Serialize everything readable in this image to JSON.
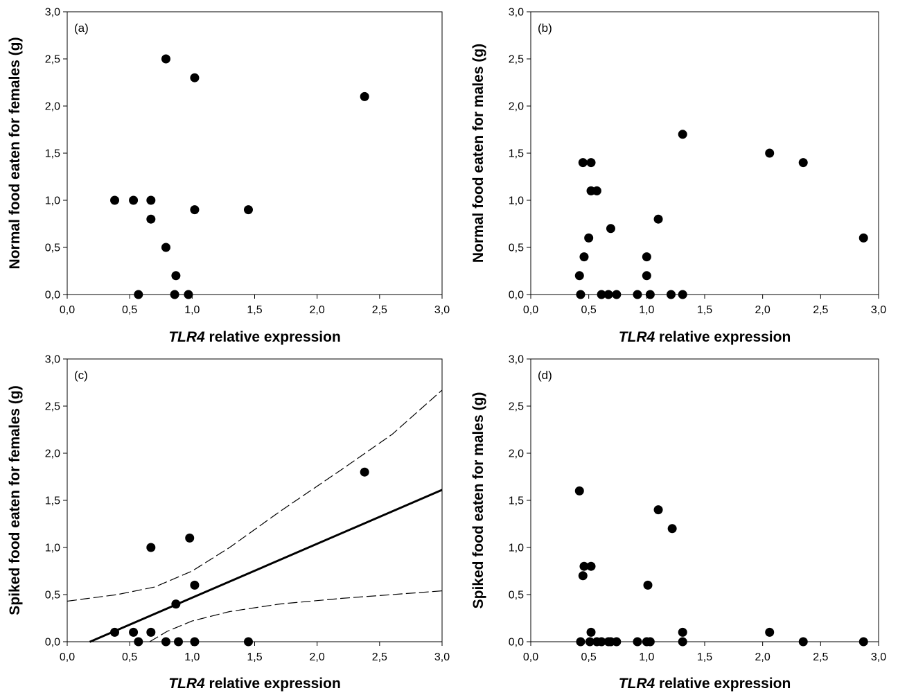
{
  "chart_data": [
    {
      "type": "scatter",
      "panel_label": "(a)",
      "xlabel_italic": "TLR4",
      "xlabel_rest": " relative expression",
      "ylabel": "Normal food eaten for females (g)",
      "xlim": [
        0,
        3
      ],
      "ylim": [
        0,
        3
      ],
      "x_ticks": [
        "0,0",
        "0,5",
        "1,0",
        "1,5",
        "2,0",
        "2,5",
        "3,0"
      ],
      "y_ticks": [
        "0,0",
        "0,5",
        "1,0",
        "1,5",
        "2,0",
        "2,5",
        "3,0"
      ],
      "points": [
        [
          0.38,
          1.0
        ],
        [
          0.53,
          1.0
        ],
        [
          0.67,
          1.0
        ],
        [
          0.67,
          0.8
        ],
        [
          0.79,
          2.5
        ],
        [
          1.02,
          2.3
        ],
        [
          1.02,
          0.9
        ],
        [
          1.45,
          0.9
        ],
        [
          2.38,
          2.1
        ],
        [
          0.79,
          0.5
        ],
        [
          0.87,
          0.2
        ],
        [
          0.57,
          0.0
        ],
        [
          0.86,
          0.0
        ],
        [
          0.97,
          0.0
        ]
      ]
    },
    {
      "type": "scatter",
      "panel_label": "(b)",
      "xlabel_italic": "TLR4",
      "xlabel_rest": " relative expression",
      "ylabel": "Normal food eaten for males (g)",
      "xlim": [
        0,
        3
      ],
      "ylim": [
        0,
        3
      ],
      "x_ticks": [
        "0,0",
        "0,5",
        "1,0",
        "1,5",
        "2,0",
        "2,5",
        "3,0"
      ],
      "y_ticks": [
        "0,0",
        "0,5",
        "1,0",
        "1,5",
        "2,0",
        "2,5",
        "3,0"
      ],
      "points": [
        [
          0.45,
          1.4
        ],
        [
          0.52,
          1.4
        ],
        [
          0.52,
          1.1
        ],
        [
          0.57,
          1.1
        ],
        [
          0.5,
          0.6
        ],
        [
          0.46,
          0.4
        ],
        [
          0.42,
          0.2
        ],
        [
          0.43,
          0.0
        ],
        [
          0.69,
          0.7
        ],
        [
          0.61,
          0.0
        ],
        [
          0.67,
          0.0
        ],
        [
          0.74,
          0.0
        ],
        [
          0.92,
          0.0
        ],
        [
          1.0,
          0.4
        ],
        [
          1.0,
          0.2
        ],
        [
          1.03,
          0.0
        ],
        [
          1.1,
          0.8
        ],
        [
          1.21,
          0.0
        ],
        [
          1.31,
          1.7
        ],
        [
          1.31,
          0.0
        ],
        [
          2.06,
          1.5
        ],
        [
          2.35,
          1.4
        ],
        [
          2.87,
          0.6
        ]
      ]
    },
    {
      "type": "scatter",
      "panel_label": "(c)",
      "xlabel_italic": "TLR4",
      "xlabel_rest": " relative expression",
      "ylabel": "Spiked food eaten for females (g)",
      "xlim": [
        0,
        3
      ],
      "ylim": [
        0,
        3
      ],
      "x_ticks": [
        "0,0",
        "0,5",
        "1,0",
        "1,5",
        "2,0",
        "2,5",
        "3,0"
      ],
      "y_ticks": [
        "0,0",
        "0,5",
        "1,0",
        "1,5",
        "2,0",
        "2,5",
        "3,0"
      ],
      "points": [
        [
          0.38,
          0.1
        ],
        [
          0.53,
          0.1
        ],
        [
          0.57,
          0.0
        ],
        [
          0.67,
          1.0
        ],
        [
          0.67,
          0.1
        ],
        [
          0.79,
          0.0
        ],
        [
          0.87,
          0.4
        ],
        [
          0.89,
          0.0
        ],
        [
          0.98,
          1.1
        ],
        [
          1.02,
          0.6
        ],
        [
          1.02,
          0.0
        ],
        [
          1.45,
          0.0
        ],
        [
          2.38,
          1.8
        ]
      ],
      "regression": {
        "slope": 0.572,
        "intercept": -0.105,
        "x_start": 0.18,
        "x_end": 3.0
      },
      "confidence_upper": [
        [
          0.0,
          0.43
        ],
        [
          0.4,
          0.5
        ],
        [
          0.7,
          0.58
        ],
        [
          1.0,
          0.75
        ],
        [
          1.3,
          1.0
        ],
        [
          1.7,
          1.38
        ],
        [
          2.2,
          1.83
        ],
        [
          2.6,
          2.2
        ],
        [
          3.0,
          2.67
        ]
      ],
      "confidence_lower": [
        [
          0.66,
          0.0
        ],
        [
          0.8,
          0.11
        ],
        [
          1.0,
          0.22
        ],
        [
          1.3,
          0.32
        ],
        [
          1.7,
          0.4
        ],
        [
          2.2,
          0.46
        ],
        [
          2.6,
          0.5
        ],
        [
          3.0,
          0.54
        ]
      ]
    },
    {
      "type": "scatter",
      "panel_label": "(d)",
      "xlabel_italic": "TLR4",
      "xlabel_rest": " relative expression",
      "ylabel": "Spiked food eaten for males (g)",
      "xlim": [
        0,
        3
      ],
      "ylim": [
        0,
        3
      ],
      "x_ticks": [
        "0,0",
        "0,5",
        "1,0",
        "1,5",
        "2,0",
        "2,5",
        "3,0"
      ],
      "y_ticks": [
        "0,0",
        "0,5",
        "1,0",
        "1,5",
        "2,0",
        "2,5",
        "3,0"
      ],
      "points": [
        [
          0.42,
          1.6
        ],
        [
          0.45,
          0.7
        ],
        [
          0.46,
          0.8
        ],
        [
          0.52,
          0.8
        ],
        [
          0.52,
          0.1
        ],
        [
          0.43,
          0.0
        ],
        [
          0.51,
          0.0
        ],
        [
          0.57,
          0.0
        ],
        [
          0.61,
          0.0
        ],
        [
          0.67,
          0.0
        ],
        [
          0.69,
          0.0
        ],
        [
          0.74,
          0.0
        ],
        [
          0.92,
          0.0
        ],
        [
          1.01,
          0.6
        ],
        [
          1.0,
          0.0
        ],
        [
          1.03,
          0.0
        ],
        [
          1.1,
          1.4
        ],
        [
          1.22,
          1.2
        ],
        [
          1.31,
          0.1
        ],
        [
          1.31,
          0.0
        ],
        [
          2.06,
          0.1
        ],
        [
          2.35,
          0.0
        ],
        [
          2.87,
          0.0
        ]
      ]
    }
  ]
}
